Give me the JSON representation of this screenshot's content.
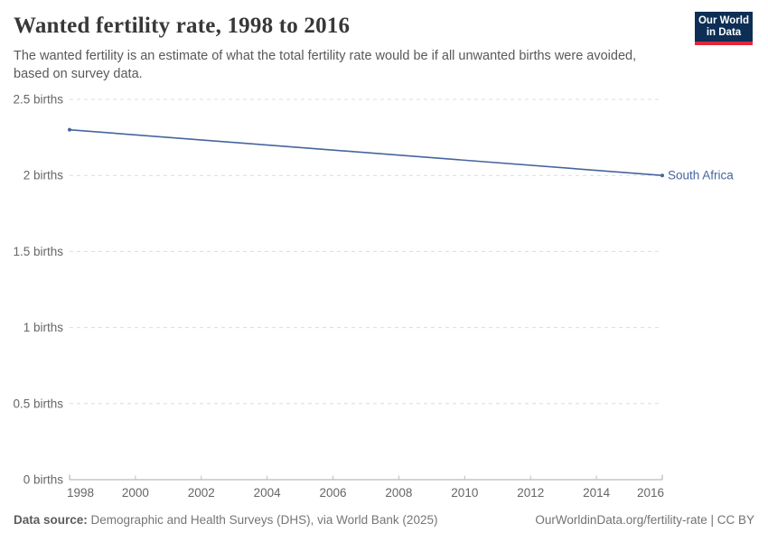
{
  "header": {
    "title": "Wanted fertility rate, 1998 to 2016",
    "subtitle_lines": [
      "The wanted fertility is an estimate of what the total fertility rate would be if all unwanted births were avoided,",
      "based on survey data."
    ],
    "logo": {
      "line1": "Our World",
      "line2": "in Data",
      "bg_color": "#0d2e55",
      "bar_color": "#e02639"
    }
  },
  "chart_data": {
    "type": "line",
    "title": "Wanted fertility rate, 1998 to 2016",
    "xlabel": "",
    "ylabel": "",
    "xlim": [
      1998,
      2016
    ],
    "ylim": [
      0,
      2.5
    ],
    "grid": "horizontal-dashed",
    "legend_position": "end-of-line-label",
    "x_ticks": [
      1998,
      2000,
      2002,
      2004,
      2006,
      2008,
      2010,
      2012,
      2014,
      2016
    ],
    "y_ticks": [
      0,
      0.5,
      1,
      1.5,
      2,
      2.5
    ],
    "y_tick_labels": [
      "0 births",
      "0.5 births",
      "1 births",
      "1.5 births",
      "2 births",
      "2.5 births"
    ],
    "series": [
      {
        "name": "South Africa",
        "color": "#44669e",
        "x": [
          1998,
          2016
        ],
        "values": [
          2.3,
          2.0
        ]
      }
    ],
    "colors": {
      "gridline": "#dcdcdc",
      "axis": "#a8a8a8",
      "tick": "#bfbfbf",
      "tick_label": "#666666"
    }
  },
  "footer": {
    "source_label": "Data source:",
    "source_text": "Demographic and Health Surveys (DHS), via World Bank (2025)",
    "credit": "OurWorldinData.org/fertility-rate | CC BY"
  }
}
